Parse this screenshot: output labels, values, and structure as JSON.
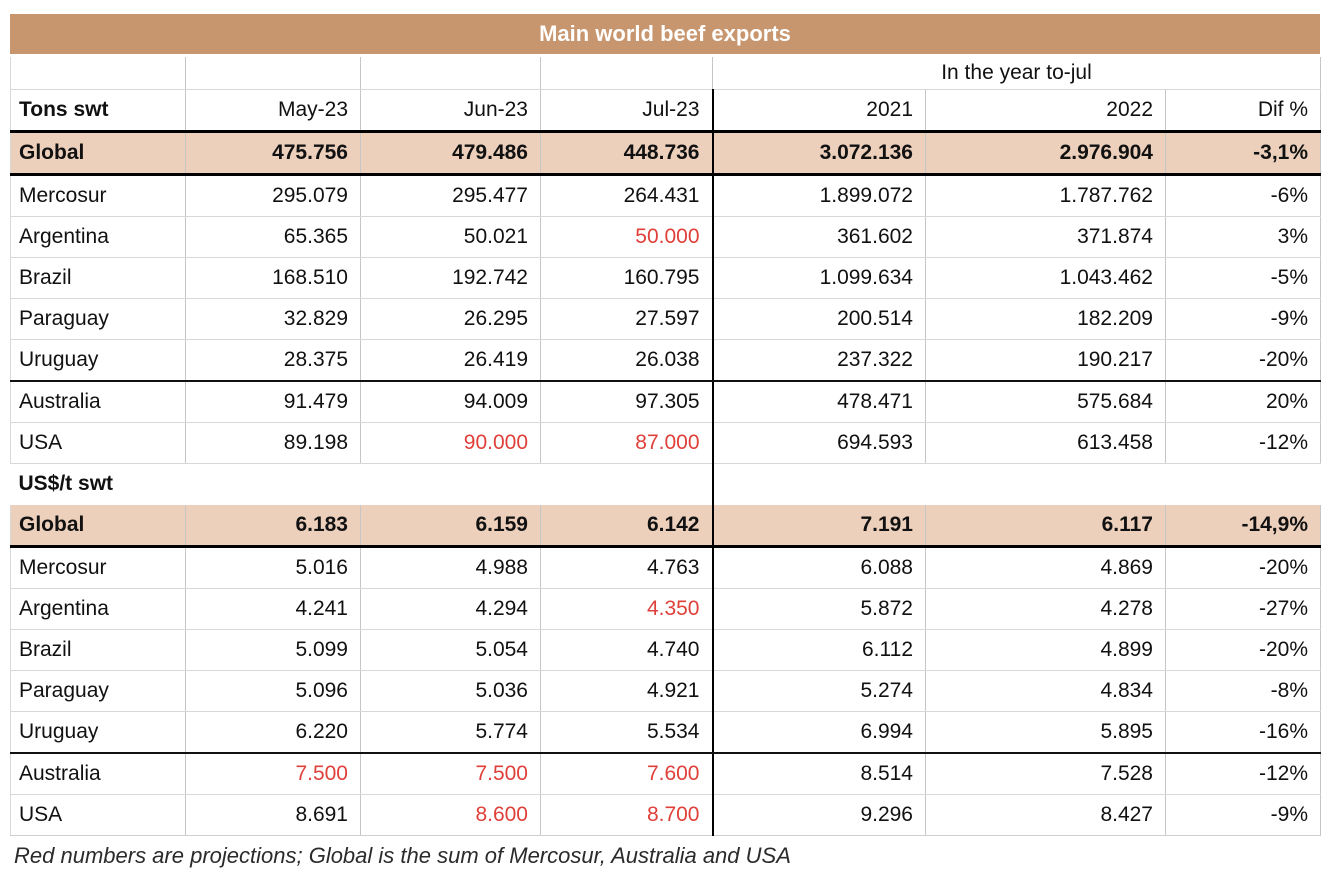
{
  "chart_data": {
    "type": "table",
    "title": "Main world beef exports",
    "year_group_label": "In the year to-jul",
    "columns": [
      "Tons swt",
      "May-23",
      "Jun-23",
      "Jul-23",
      "2021",
      "2022",
      "Dif %"
    ],
    "sections": [
      {
        "unit": "Tons swt",
        "rows": [
          {
            "label": "Global",
            "values": [
              "475.756",
              "479.486",
              "448.736",
              "3.072.136",
              "2.976.904",
              "-3,1%"
            ],
            "red": [
              false,
              false,
              false,
              false,
              false,
              false
            ]
          },
          {
            "label": "Mercosur",
            "values": [
              "295.079",
              "295.477",
              "264.431",
              "1.899.072",
              "1.787.762",
              "-6%"
            ],
            "red": [
              false,
              false,
              false,
              false,
              false,
              false
            ]
          },
          {
            "label": "Argentina",
            "values": [
              "65.365",
              "50.021",
              "50.000",
              "361.602",
              "371.874",
              "3%"
            ],
            "red": [
              false,
              false,
              true,
              false,
              false,
              false
            ]
          },
          {
            "label": "Brazil",
            "values": [
              "168.510",
              "192.742",
              "160.795",
              "1.099.634",
              "1.043.462",
              "-5%"
            ],
            "red": [
              false,
              false,
              false,
              false,
              false,
              false
            ]
          },
          {
            "label": "Paraguay",
            "values": [
              "32.829",
              "26.295",
              "27.597",
              "200.514",
              "182.209",
              "-9%"
            ],
            "red": [
              false,
              false,
              false,
              false,
              false,
              false
            ]
          },
          {
            "label": "Uruguay",
            "values": [
              "28.375",
              "26.419",
              "26.038",
              "237.322",
              "190.217",
              "-20%"
            ],
            "red": [
              false,
              false,
              false,
              false,
              false,
              false
            ]
          },
          {
            "label": "Australia",
            "values": [
              "91.479",
              "94.009",
              "97.305",
              "478.471",
              "575.684",
              "20%"
            ],
            "red": [
              false,
              false,
              false,
              false,
              false,
              false
            ]
          },
          {
            "label": "USA",
            "values": [
              "89.198",
              "90.000",
              "87.000",
              "694.593",
              "613.458",
              "-12%"
            ],
            "red": [
              false,
              true,
              true,
              false,
              false,
              false
            ]
          }
        ]
      },
      {
        "unit": "US$/t swt",
        "rows": [
          {
            "label": "Global",
            "values": [
              "6.183",
              "6.159",
              "6.142",
              "7.191",
              "6.117",
              "-14,9%"
            ],
            "red": [
              false,
              false,
              false,
              false,
              false,
              false
            ]
          },
          {
            "label": "Mercosur",
            "values": [
              "5.016",
              "4.988",
              "4.763",
              "6.088",
              "4.869",
              "-20%"
            ],
            "red": [
              false,
              false,
              false,
              false,
              false,
              false
            ]
          },
          {
            "label": "Argentina",
            "values": [
              "4.241",
              "4.294",
              "4.350",
              "5.872",
              "4.278",
              "-27%"
            ],
            "red": [
              false,
              false,
              true,
              false,
              false,
              false
            ]
          },
          {
            "label": "Brazil",
            "values": [
              "5.099",
              "5.054",
              "4.740",
              "6.112",
              "4.899",
              "-20%"
            ],
            "red": [
              false,
              false,
              false,
              false,
              false,
              false
            ]
          },
          {
            "label": "Paraguay",
            "values": [
              "5.096",
              "5.036",
              "4.921",
              "5.274",
              "4.834",
              "-8%"
            ],
            "red": [
              false,
              false,
              false,
              false,
              false,
              false
            ]
          },
          {
            "label": "Uruguay",
            "values": [
              "6.220",
              "5.774",
              "5.534",
              "6.994",
              "5.895",
              "-16%"
            ],
            "red": [
              false,
              false,
              false,
              false,
              false,
              false
            ]
          },
          {
            "label": "Australia",
            "values": [
              "7.500",
              "7.500",
              "7.600",
              "8.514",
              "7.528",
              "-12%"
            ],
            "red": [
              true,
              true,
              true,
              false,
              false,
              false
            ]
          },
          {
            "label": "USA",
            "values": [
              "8.691",
              "8.600",
              "8.700",
              "9.296",
              "8.427",
              "-9%"
            ],
            "red": [
              false,
              true,
              true,
              false,
              false,
              false
            ]
          }
        ]
      }
    ],
    "footnote": "Red numbers are projections; Global is the sum of Mercosur, Australia and USA"
  },
  "colors": {
    "title_bg": "#c8966e",
    "highlight_bg": "#ecd0bc",
    "projection_red": "#e0403a"
  }
}
